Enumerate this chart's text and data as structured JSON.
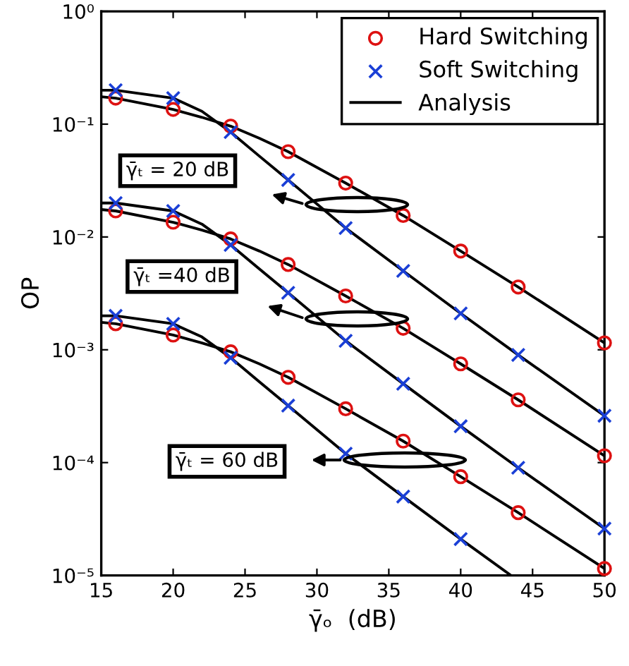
{
  "chart_data": {
    "type": "scatter",
    "xlabel": "γ̄ₒ  (dB)",
    "ylabel": "OP",
    "xlim": [
      15,
      50
    ],
    "xticks": [
      15,
      20,
      25,
      30,
      35,
      40,
      45,
      50
    ],
    "ylim": [
      1e-05,
      1
    ],
    "log": "y",
    "yticks": [
      {
        "value": 1e-05,
        "label": "10⁻⁵"
      },
      {
        "value": 0.0001,
        "label": "10⁻⁴"
      },
      {
        "value": 0.001,
        "label": "10⁻³"
      },
      {
        "value": 0.01,
        "label": "10⁻²"
      },
      {
        "value": 0.1,
        "label": "10⁻¹"
      },
      {
        "value": 1,
        "label": "10⁰"
      }
    ],
    "grid": false,
    "legend": "top right",
    "series": [
      {
        "name": "Hard Switching",
        "color": "#dd1111",
        "marker": "circle",
        "x": [
          16,
          20,
          24,
          28,
          32,
          36,
          40,
          44,
          50
        ],
        "values": [
          0.17,
          0.135,
          0.096,
          0.057,
          0.03,
          0.0155,
          0.0075,
          0.0036,
          0.00115
        ]
      },
      {
        "name": "Soft Switching",
        "color": "#1a3fd6",
        "marker": "cross",
        "x": [
          16,
          20,
          24,
          28,
          32,
          36,
          40,
          44,
          50
        ],
        "values": [
          0.2,
          0.17,
          0.085,
          0.032,
          0.012,
          0.005,
          0.0021,
          0.0009,
          0.00026
        ]
      },
      {
        "type": "line",
        "name": "Analysis",
        "color": "#000000",
        "marker": "none",
        "x": [
          15,
          16,
          20,
          22,
          24,
          26,
          28,
          32,
          36,
          40,
          44,
          50
        ],
        "values": [
          0.175,
          0.17,
          0.135,
          0.115,
          0.096,
          0.075,
          0.057,
          0.03,
          0.0155,
          0.0075,
          0.0036,
          0.00115
        ]
      },
      {
        "type": "line",
        "color": "#000000",
        "marker": "none",
        "x": [
          15,
          16,
          20,
          22,
          24,
          26,
          28,
          32,
          36,
          40,
          44,
          50
        ],
        "values": [
          0.2,
          0.2,
          0.17,
          0.13,
          0.085,
          0.052,
          0.032,
          0.012,
          0.005,
          0.0021,
          0.0009,
          0.00026
        ]
      },
      {
        "color": "#dd1111",
        "marker": "circle",
        "x": [
          16,
          20,
          24,
          28,
          32,
          36,
          40,
          44,
          50
        ],
        "values": [
          0.017,
          0.0135,
          0.0096,
          0.0057,
          0.003,
          0.00155,
          0.00075,
          0.00036,
          0.000115
        ]
      },
      {
        "color": "#1a3fd6",
        "marker": "cross",
        "x": [
          16,
          20,
          24,
          28,
          32,
          36,
          40,
          44,
          50
        ],
        "values": [
          0.02,
          0.017,
          0.0085,
          0.0032,
          0.0012,
          0.0005,
          0.00021,
          9e-05,
          2.6e-05
        ]
      },
      {
        "type": "line",
        "color": "#000000",
        "marker": "none",
        "x": [
          15,
          16,
          20,
          22,
          24,
          26,
          28,
          32,
          36,
          40,
          44,
          50
        ],
        "values": [
          0.0175,
          0.017,
          0.0135,
          0.0115,
          0.0096,
          0.0075,
          0.0057,
          0.003,
          0.00155,
          0.00075,
          0.00036,
          0.000115
        ]
      },
      {
        "type": "line",
        "color": "#000000",
        "marker": "none",
        "x": [
          15,
          16,
          20,
          22,
          24,
          26,
          28,
          32,
          36,
          40,
          44,
          50
        ],
        "values": [
          0.02,
          0.02,
          0.017,
          0.013,
          0.0085,
          0.0052,
          0.0032,
          0.0012,
          0.0005,
          0.00021,
          9e-05,
          2.6e-05
        ]
      },
      {
        "color": "#dd1111",
        "marker": "circle",
        "x": [
          16,
          20,
          24,
          28,
          32,
          36,
          40,
          44,
          50
        ],
        "values": [
          0.0017,
          0.00135,
          0.00096,
          0.00057,
          0.0003,
          0.000155,
          7.5e-05,
          3.6e-05,
          1.15e-05
        ]
      },
      {
        "color": "#1a3fd6",
        "marker": "cross",
        "x": [
          16,
          20,
          24,
          28,
          32,
          36,
          40
        ],
        "values": [
          0.002,
          0.0017,
          0.00085,
          0.00032,
          0.00012,
          5e-05,
          2.1e-05
        ]
      },
      {
        "type": "line",
        "color": "#000000",
        "marker": "none",
        "x": [
          15,
          16,
          20,
          22,
          24,
          26,
          28,
          32,
          36,
          40,
          44,
          50
        ],
        "values": [
          0.00175,
          0.0017,
          0.00135,
          0.00115,
          0.00096,
          0.00075,
          0.00057,
          0.0003,
          0.000155,
          7.5e-05,
          3.6e-05,
          1.15e-05
        ]
      },
      {
        "type": "line",
        "color": "#000000",
        "marker": "none",
        "x": [
          15,
          16,
          20,
          22,
          24,
          26,
          28,
          32,
          36,
          40,
          43.5
        ],
        "values": [
          0.002,
          0.002,
          0.0017,
          0.0013,
          0.00085,
          0.00052,
          0.00032,
          0.00012,
          5e-05,
          2.1e-05,
          1e-05
        ]
      }
    ],
    "annotations": [
      "γ̄ₜ = 20 dB",
      "γ̄ₜ =40 dB",
      "γ̄ₜ = 60 dB"
    ]
  }
}
